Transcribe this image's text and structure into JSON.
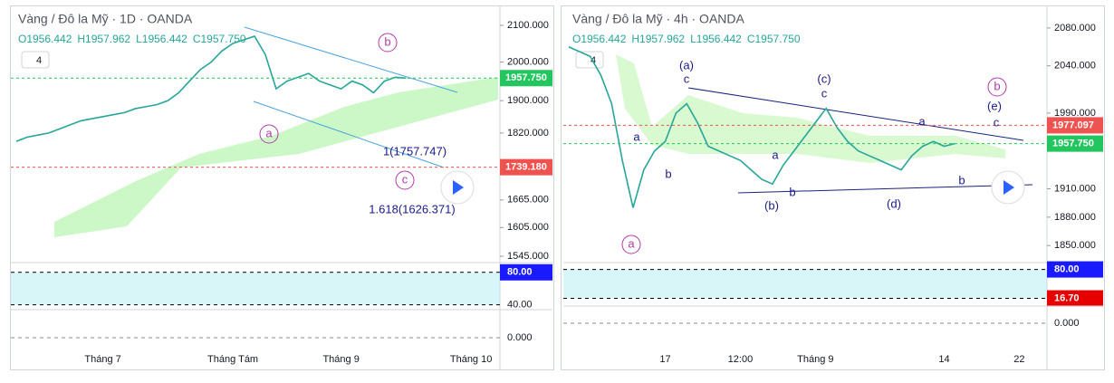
{
  "chart_data": [
    {
      "type": "line",
      "title": "Vàng / Đô la Mỹ · 1D · OANDA",
      "ohlc": [
        "O1956.442",
        "H1957.962",
        "L1956.442",
        "C1957.750"
      ],
      "interval_badge": "4",
      "color": "#26a69a",
      "log_scale": true,
      "categories": [
        null,
        null,
        null,
        null,
        null,
        null,
        null,
        null,
        "Tháng 7",
        null,
        null,
        null,
        null,
        null,
        null,
        null,
        null,
        null,
        null,
        null,
        "Tháng Tám",
        null,
        null,
        null,
        null,
        null,
        null,
        null,
        null,
        null,
        "Tháng 9",
        null,
        null,
        null,
        null,
        null,
        null,
        null,
        null,
        null,
        null,
        null,
        "Tháng 10",
        null,
        null
      ],
      "values": [
        1800,
        1810,
        1815,
        1820,
        1830,
        1840,
        1850,
        1855,
        1860,
        1865,
        1870,
        1880,
        1885,
        1890,
        1900,
        1920,
        1950,
        1980,
        2000,
        2030,
        2050,
        2060,
        2070,
        2020,
        1930,
        1950,
        1960,
        1970,
        1950,
        1940,
        1930,
        1950,
        1940,
        1920,
        1950,
        1960,
        1957.75,
        null,
        null,
        null,
        null,
        null,
        null,
        null,
        null
      ],
      "ylim": [
        1532,
        2146
      ],
      "yticks": [
        {
          "value": 2100,
          "label": "2100.000"
        },
        {
          "value": 2000,
          "label": "2000.000"
        },
        {
          "value": 1900,
          "label": "1900.000"
        },
        {
          "value": 1820,
          "label": "1820.000"
        },
        {
          "value": 1665,
          "label": "1665.000"
        },
        {
          "value": 1605,
          "label": "1605.000"
        },
        {
          "value": 1545,
          "label": "1545.000"
        }
      ],
      "price_tags": [
        {
          "value": 1957.75,
          "label": "1957.750",
          "color": "#22c55e"
        },
        {
          "value": 1739.18,
          "label": "1739.180",
          "color": "#ef5350"
        }
      ],
      "annotations": [
        "b",
        "a",
        "c",
        "1(1757.747)",
        "1.618(1626.371)"
      ],
      "rsi": {
        "ylim": [
          34,
          92
        ],
        "yticks": [
          {
            "value": 80,
            "label": "80.00"
          },
          {
            "value": 40,
            "label": "40.00"
          }
        ]
      },
      "macd": {
        "ylim": [
          -1,
          1
        ],
        "yticks": [
          {
            "value": 0,
            "label": "0.000"
          }
        ]
      }
    },
    {
      "type": "line",
      "title": "Vàng / Đô la Mỹ · 4h · OANDA",
      "ohlc": [
        "O1956.442",
        "H1957.962",
        "L1956.442",
        "C1957.750"
      ],
      "interval_badge": "4",
      "color": "#26a69a",
      "log_scale": false,
      "categories": [
        null,
        null,
        null,
        null,
        null,
        null,
        null,
        null,
        null,
        "17",
        null,
        null,
        null,
        null,
        null,
        null,
        "12:00",
        null,
        null,
        null,
        null,
        null,
        null,
        "Tháng 9",
        null,
        null,
        null,
        null,
        null,
        null,
        null,
        null,
        null,
        null,
        null,
        "14",
        null,
        null,
        null,
        null,
        null,
        null,
        "22",
        null,
        null
      ],
      "values": [
        2060,
        2055,
        2050,
        2030,
        2000,
        1940,
        1890,
        1930,
        1950,
        1960,
        1990,
        2000,
        1980,
        1955,
        1950,
        1945,
        1940,
        1930,
        1920,
        1915,
        1935,
        1950,
        1965,
        1980,
        1995,
        1975,
        1960,
        1950,
        1945,
        1940,
        1935,
        1930,
        1945,
        1955,
        1960,
        1955,
        1957.75,
        null,
        null,
        null,
        null,
        null,
        null,
        null,
        null
      ],
      "ylim": [
        1832,
        2100
      ],
      "yticks": [
        {
          "value": 2080,
          "label": "2080.000"
        },
        {
          "value": 2040,
          "label": "2040.000"
        },
        {
          "value": 1990,
          "label": "1990.000"
        },
        {
          "value": 1910,
          "label": "1910.000"
        },
        {
          "value": 1880,
          "label": "1880.000"
        },
        {
          "value": 1850,
          "label": "1850.000"
        }
      ],
      "price_tags": [
        {
          "value": 1977.097,
          "label": "1977.097",
          "color": "#ef5350"
        },
        {
          "value": 1957.75,
          "label": "1957.750",
          "color": "#22c55e"
        }
      ],
      "annotations": [
        "(a)",
        "c",
        "a",
        "b",
        "a",
        "(b)",
        "b",
        "(c)",
        "c",
        "a",
        "b",
        "(d)",
        "(e)",
        "c",
        "b",
        "a"
      ],
      "rsi": {
        "ylim": [
          0,
          95
        ],
        "yticks": [
          {
            "value": 80,
            "label": "80.00"
          },
          {
            "value": 16.7,
            "label": "16.70"
          }
        ]
      },
      "macd": {
        "ylim": [
          -1,
          1
        ],
        "yticks": [
          {
            "value": 0,
            "label": "0.000"
          }
        ]
      }
    }
  ]
}
